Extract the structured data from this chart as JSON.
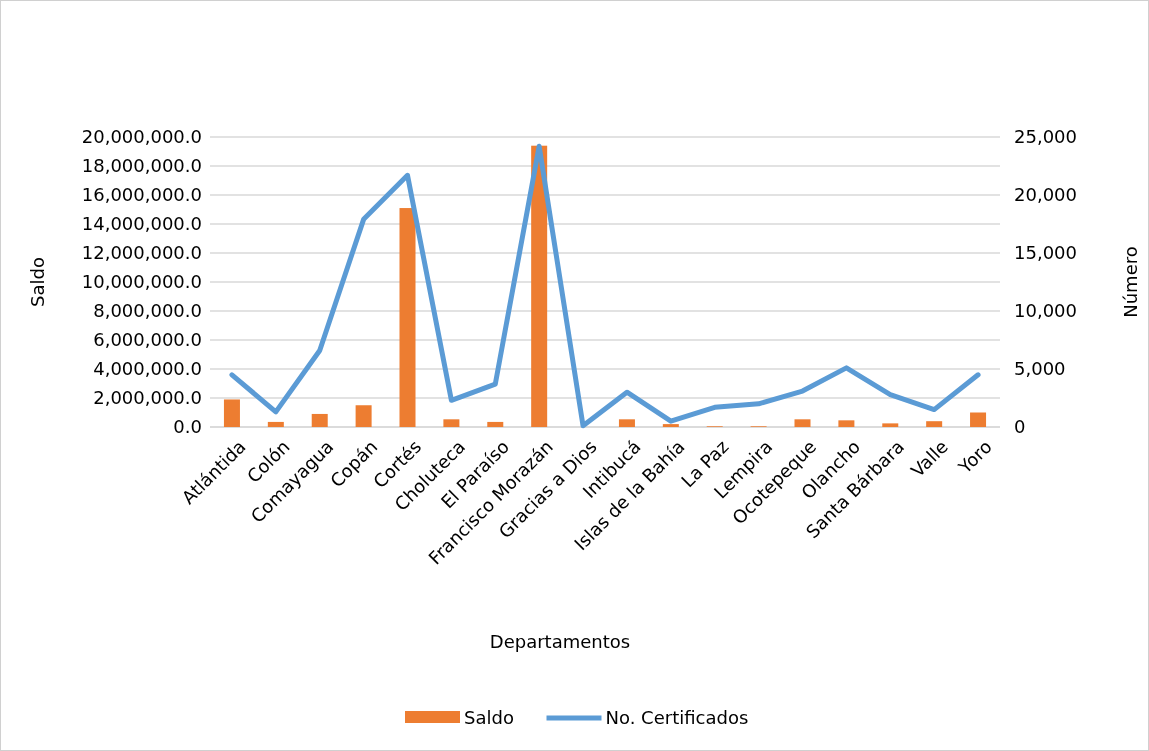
{
  "chart_data": {
    "type": "bar",
    "xlabel": "Departamentos",
    "ylabel": "Saldo",
    "y2label": "Número",
    "categories": [
      "Atlántida",
      "Colón",
      "Comayagua",
      "Copán",
      "Cortés",
      "Choluteca",
      "El Paraíso",
      "Francisco Morazán",
      "Gracias a Dios",
      "Intibucá",
      "Islas de la Bahía",
      "La Paz",
      "Lempira",
      "Ocotepeque",
      "Olancho",
      "Santa Bárbara",
      "Valle",
      "Yoro"
    ],
    "series": [
      {
        "name": "Saldo",
        "color": "#ed7d31",
        "values": [
          1900000,
          350000,
          900000,
          1500000,
          15100000,
          530000,
          350000,
          19400000,
          0,
          530000,
          200000,
          50000,
          50000,
          530000,
          460000,
          250000,
          400000,
          1000000
        ]
      },
      {
        "name": "No. Certificados",
        "type": "line",
        "axis": "y2",
        "color": "#5b9bd5",
        "values": [
          4500,
          1300,
          6600,
          17900,
          21700,
          2300,
          3700,
          24200,
          100,
          3000,
          500,
          1700,
          2000,
          3100,
          5100,
          2800,
          1500,
          4500
        ]
      }
    ],
    "ylim": [
      0,
      20000000
    ],
    "yticks": [
      {
        "value": 0,
        "label": "0.0"
      },
      {
        "value": 2000000,
        "label": "2,000,000.0"
      },
      {
        "value": 4000000,
        "label": "4,000,000.0"
      },
      {
        "value": 6000000,
        "label": "6,000,000.0"
      },
      {
        "value": 8000000,
        "label": "8,000,000.0"
      },
      {
        "value": 10000000,
        "label": "10,000,000.0"
      },
      {
        "value": 12000000,
        "label": "12,000,000.0"
      },
      {
        "value": 14000000,
        "label": "14,000,000.0"
      },
      {
        "value": 16000000,
        "label": "16,000,000.0"
      },
      {
        "value": 18000000,
        "label": "18,000,000.0"
      },
      {
        "value": 20000000,
        "label": "20,000,000.0"
      }
    ],
    "y2lim": [
      0,
      25000
    ],
    "y2ticks": [
      0,
      {
        "value": 5000,
        "label": "5,000"
      },
      {
        "value": 10000,
        "label": "10,000"
      },
      {
        "value": 15000,
        "label": "15,000"
      },
      {
        "value": 20000,
        "label": "20,000"
      },
      {
        "value": 25000,
        "label": "25,000"
      }
    ],
    "grid": "y",
    "legend": "bottom"
  }
}
